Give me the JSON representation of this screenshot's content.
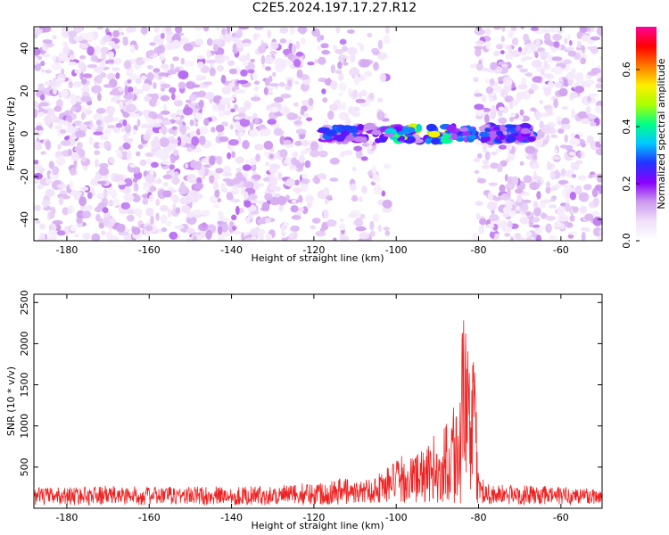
{
  "title": "C2E5.2024.197.17.27.R12",
  "chart_data": [
    {
      "type": "heatmap",
      "xlabel": "Height of straight line (km)",
      "ylabel": "Frequency (Hz)",
      "xlim": [
        -188,
        -50
      ],
      "ylim": [
        -50,
        50
      ],
      "xticks": [
        -180,
        -160,
        -140,
        -120,
        -100,
        -80,
        -60
      ],
      "yticks": [
        -40,
        -20,
        0,
        20,
        40
      ],
      "colorbar": {
        "label": "Normalized spectral amplitude",
        "range": [
          0,
          0.75
        ],
        "ticks": [
          0.0,
          0.2,
          0.4,
          0.6
        ],
        "colormap": [
          "#ffffff",
          "#f0e0fa",
          "#cc99ee",
          "#8a00ff",
          "#2233ff",
          "#00c8ff",
          "#00ff88",
          "#aaff00",
          "#ffee00",
          "#ff7700",
          "#ff0000",
          "#ff0099"
        ]
      },
      "signal_band": {
        "frequency_hz": 0,
        "x_ranges": [
          [
            -118,
            -81
          ],
          [
            -79,
            -67
          ]
        ],
        "peak_amplitude": 0.55
      },
      "blank_region": {
        "x_range": [
          -102,
          -81
        ],
        "note_values": "no data"
      }
    },
    {
      "type": "line",
      "xlabel": "Height of straight line (km)",
      "ylabel": "SNR (10 * v/v)",
      "xlim": [
        -188,
        -50
      ],
      "ylim": [
        0,
        2600
      ],
      "xticks": [
        -180,
        -160,
        -140,
        -120,
        -100,
        -80,
        -60
      ],
      "yticks": [
        500,
        1000,
        1500,
        2000,
        2500
      ],
      "color": "#ee2222",
      "series": [
        {
          "x": [
            -188,
            -180,
            -170,
            -160,
            -150,
            -140,
            -130,
            -125,
            -120,
            -115,
            -110,
            -106,
            -103,
            -101,
            -99,
            -97,
            -95,
            -93,
            -91,
            -89,
            -88,
            -87,
            -86,
            -85,
            -84,
            -83,
            -82,
            -81,
            -80,
            -78,
            -75,
            -70,
            -65,
            -60,
            -55,
            -50
          ],
          "y": [
            150,
            160,
            175,
            160,
            170,
            165,
            175,
            190,
            220,
            260,
            320,
            380,
            480,
            560,
            640,
            600,
            720,
            680,
            900,
            650,
            1250,
            900,
            1500,
            1100,
            2100,
            2600,
            1600,
            1850,
            400,
            220,
            190,
            180,
            170,
            165,
            160,
            155
          ]
        }
      ],
      "noise_floor": 150
    }
  ]
}
